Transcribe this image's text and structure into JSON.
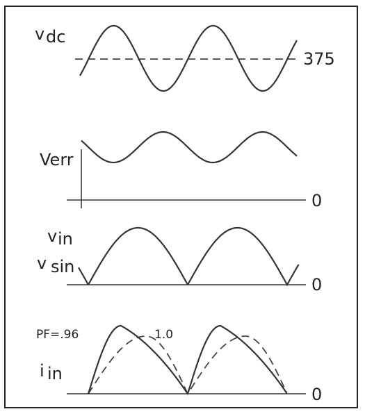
{
  "panels": {
    "vdc": {
      "label_main": "v",
      "label_sub": "dc",
      "level_label": "375"
    },
    "verr": {
      "label": "Verr",
      "zero_label": "0"
    },
    "vin": {
      "label_vin_main": "v",
      "label_vin_sub": "in",
      "label_vsin_main": "v",
      "label_vsin_sub": "sin",
      "zero_label": "0"
    },
    "iin": {
      "label_main": "i",
      "label_sub": "in",
      "pf_low_label": "PF=.96",
      "pf_high_label": "1.0",
      "zero_label": "0"
    }
  }
}
